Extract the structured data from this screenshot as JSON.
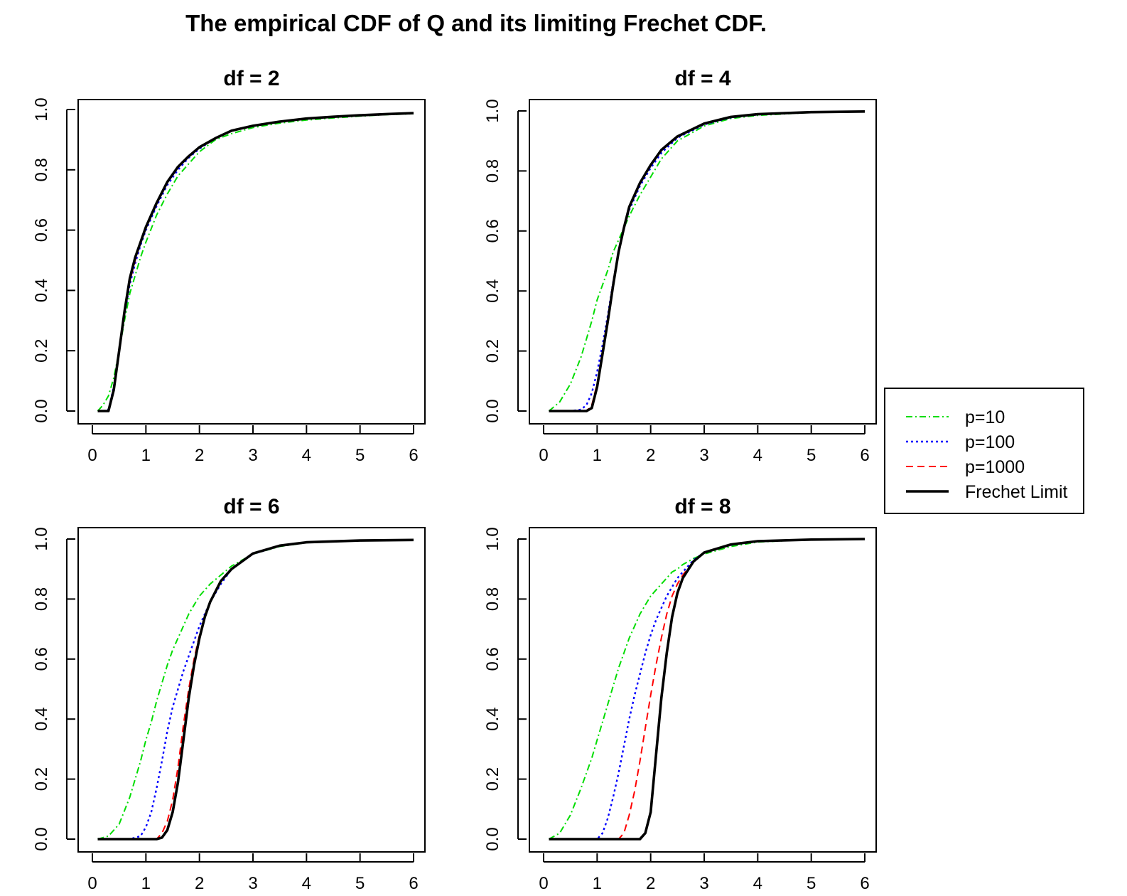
{
  "figure": {
    "title": "The empirical CDF of Q and its limiting Frechet CDF."
  },
  "legend": {
    "placement": "right, between rows",
    "entries": [
      {
        "label": "p=10",
        "color": "#00dd00",
        "dash": "dashdot"
      },
      {
        "label": "p=100",
        "color": "#0000ff",
        "dash": "dotted"
      },
      {
        "label": "p=1000",
        "color": "#ff0000",
        "dash": "dashed"
      },
      {
        "label": "Frechet Limit",
        "color": "#000000",
        "dash": "solid"
      }
    ]
  },
  "chart_data": [
    {
      "type": "line",
      "title": "df = 2",
      "xlim": [
        0,
        6
      ],
      "ylim": [
        0,
        1
      ],
      "xticks": [
        "0",
        "1",
        "2",
        "3",
        "4",
        "5",
        "6"
      ],
      "yticks": [
        "0.0",
        "0.2",
        "0.4",
        "0.6",
        "0.8",
        "1.0"
      ],
      "x": [
        0.1,
        0.2,
        0.3,
        0.4,
        0.5,
        0.6,
        0.7,
        0.8,
        0.9,
        1.0,
        1.2,
        1.4,
        1.6,
        1.8,
        2.0,
        2.3,
        2.6,
        3.0,
        3.5,
        4.0,
        4.5,
        5.0,
        5.5,
        6.0
      ],
      "series": [
        {
          "name": "p=10",
          "values": [
            0.0,
            0.02,
            0.05,
            0.11,
            0.2,
            0.3,
            0.39,
            0.45,
            0.51,
            0.56,
            0.65,
            0.72,
            0.78,
            0.82,
            0.86,
            0.9,
            0.92,
            0.94,
            0.955,
            0.965,
            0.972,
            0.978,
            0.983,
            0.986
          ]
        },
        {
          "name": "p=100",
          "values": [
            0.0,
            0.0,
            0.005,
            0.08,
            0.2,
            0.32,
            0.42,
            0.49,
            0.55,
            0.6,
            0.68,
            0.75,
            0.8,
            0.84,
            0.87,
            0.905,
            0.93,
            0.945,
            0.96,
            0.97,
            0.976,
            0.981,
            0.985,
            0.988
          ]
        },
        {
          "name": "p=1000",
          "values": [
            0.0,
            0.0,
            0.0,
            0.07,
            0.2,
            0.33,
            0.43,
            0.5,
            0.56,
            0.61,
            0.69,
            0.76,
            0.81,
            0.845,
            0.875,
            0.905,
            0.93,
            0.946,
            0.96,
            0.97,
            0.976,
            0.981,
            0.985,
            0.988
          ]
        },
        {
          "name": "Frechet Limit",
          "values": [
            0.0,
            0.0,
            0.0,
            0.07,
            0.2,
            0.33,
            0.44,
            0.51,
            0.56,
            0.61,
            0.69,
            0.76,
            0.81,
            0.845,
            0.875,
            0.905,
            0.93,
            0.946,
            0.96,
            0.97,
            0.976,
            0.981,
            0.985,
            0.988
          ]
        }
      ]
    },
    {
      "type": "line",
      "title": "df = 4",
      "xlim": [
        0,
        6
      ],
      "ylim": [
        0,
        1
      ],
      "xticks": [
        "0",
        "1",
        "2",
        "3",
        "4",
        "5",
        "6"
      ],
      "yticks": [
        "0.0",
        "0.2",
        "0.4",
        "0.6",
        "0.8",
        "1.0"
      ],
      "x": [
        0.1,
        0.3,
        0.5,
        0.7,
        0.8,
        0.9,
        1.0,
        1.1,
        1.2,
        1.3,
        1.4,
        1.5,
        1.6,
        1.8,
        2.0,
        2.2,
        2.5,
        3.0,
        3.5,
        4.0,
        5.0,
        6.0
      ],
      "series": [
        {
          "name": "p=10",
          "values": [
            0.0,
            0.03,
            0.09,
            0.18,
            0.24,
            0.3,
            0.37,
            0.42,
            0.47,
            0.53,
            0.57,
            0.61,
            0.65,
            0.72,
            0.78,
            0.84,
            0.9,
            0.95,
            0.975,
            0.985,
            0.995,
            0.998
          ]
        },
        {
          "name": "p=100",
          "values": [
            0.0,
            0.0,
            0.0,
            0.005,
            0.02,
            0.06,
            0.13,
            0.22,
            0.32,
            0.43,
            0.53,
            0.61,
            0.67,
            0.75,
            0.81,
            0.86,
            0.91,
            0.955,
            0.978,
            0.988,
            0.996,
            0.998
          ]
        },
        {
          "name": "p=1000",
          "values": [
            0.0,
            0.0,
            0.0,
            0.0,
            0.0,
            0.02,
            0.09,
            0.2,
            0.31,
            0.43,
            0.53,
            0.61,
            0.68,
            0.76,
            0.82,
            0.87,
            0.915,
            0.958,
            0.98,
            0.989,
            0.996,
            0.998
          ]
        },
        {
          "name": "Frechet Limit",
          "values": [
            0.0,
            0.0,
            0.0,
            0.0,
            0.0,
            0.01,
            0.08,
            0.19,
            0.3,
            0.42,
            0.53,
            0.61,
            0.68,
            0.76,
            0.82,
            0.87,
            0.915,
            0.958,
            0.98,
            0.989,
            0.996,
            0.998
          ]
        }
      ]
    },
    {
      "type": "line",
      "title": "df = 6",
      "xlim": [
        0,
        6
      ],
      "ylim": [
        0,
        1
      ],
      "xticks": [
        "0",
        "1",
        "2",
        "3",
        "4",
        "5",
        "6"
      ],
      "yticks": [
        "0.0",
        "0.2",
        "0.4",
        "0.6",
        "0.8",
        "1.0"
      ],
      "x": [
        0.1,
        0.3,
        0.5,
        0.7,
        0.9,
        1.0,
        1.1,
        1.2,
        1.3,
        1.4,
        1.5,
        1.6,
        1.7,
        1.8,
        1.9,
        2.0,
        2.1,
        2.2,
        2.4,
        2.6,
        3.0,
        3.5,
        4.0,
        5.0,
        6.0
      ],
      "series": [
        {
          "name": "p=10",
          "values": [
            0.0,
            0.01,
            0.05,
            0.14,
            0.26,
            0.33,
            0.39,
            0.46,
            0.52,
            0.58,
            0.63,
            0.67,
            0.71,
            0.75,
            0.78,
            0.81,
            0.83,
            0.85,
            0.88,
            0.91,
            0.95,
            0.975,
            0.988,
            0.995,
            0.997
          ]
        },
        {
          "name": "p=100",
          "values": [
            0.0,
            0.0,
            0.0,
            0.0,
            0.01,
            0.04,
            0.09,
            0.17,
            0.26,
            0.36,
            0.44,
            0.5,
            0.56,
            0.61,
            0.66,
            0.71,
            0.75,
            0.79,
            0.85,
            0.9,
            0.95,
            0.977,
            0.989,
            0.995,
            0.997
          ]
        },
        {
          "name": "p=1000",
          "values": [
            0.0,
            0.0,
            0.0,
            0.0,
            0.0,
            0.0,
            0.0,
            0.0,
            0.02,
            0.06,
            0.13,
            0.24,
            0.38,
            0.5,
            0.6,
            0.68,
            0.74,
            0.79,
            0.86,
            0.9,
            0.95,
            0.978,
            0.989,
            0.995,
            0.997
          ]
        },
        {
          "name": "Frechet Limit",
          "values": [
            0.0,
            0.0,
            0.0,
            0.0,
            0.0,
            0.0,
            0.0,
            0.0,
            0.005,
            0.03,
            0.09,
            0.19,
            0.33,
            0.47,
            0.58,
            0.67,
            0.74,
            0.79,
            0.86,
            0.9,
            0.952,
            0.978,
            0.989,
            0.995,
            0.997
          ]
        }
      ]
    },
    {
      "type": "line",
      "title": "df = 8",
      "xlim": [
        0,
        6
      ],
      "ylim": [
        0,
        1
      ],
      "xticks": [
        "0",
        "1",
        "2",
        "3",
        "4",
        "5",
        "6"
      ],
      "yticks": [
        "0.0",
        "0.2",
        "0.4",
        "0.6",
        "0.8",
        "1.0"
      ],
      "x": [
        0.1,
        0.3,
        0.5,
        0.7,
        0.9,
        1.0,
        1.1,
        1.2,
        1.3,
        1.4,
        1.5,
        1.6,
        1.7,
        1.8,
        1.9,
        2.0,
        2.1,
        2.2,
        2.3,
        2.4,
        2.5,
        2.6,
        2.8,
        3.0,
        3.5,
        4.0,
        5.0,
        6.0
      ],
      "series": [
        {
          "name": "p=10",
          "values": [
            0.0,
            0.02,
            0.08,
            0.17,
            0.27,
            0.33,
            0.39,
            0.45,
            0.51,
            0.57,
            0.62,
            0.67,
            0.71,
            0.75,
            0.78,
            0.81,
            0.83,
            0.85,
            0.87,
            0.89,
            0.9,
            0.915,
            0.935,
            0.95,
            0.975,
            0.99,
            0.998,
            1.0
          ]
        },
        {
          "name": "p=100",
          "values": [
            0.0,
            0.0,
            0.0,
            0.0,
            0.0,
            0.0,
            0.02,
            0.07,
            0.14,
            0.22,
            0.31,
            0.4,
            0.48,
            0.55,
            0.62,
            0.68,
            0.73,
            0.77,
            0.81,
            0.84,
            0.87,
            0.89,
            0.93,
            0.955,
            0.98,
            0.992,
            0.998,
            1.0
          ]
        },
        {
          "name": "p=1000",
          "values": [
            0.0,
            0.0,
            0.0,
            0.0,
            0.0,
            0.0,
            0.0,
            0.0,
            0.0,
            0.0,
            0.02,
            0.08,
            0.16,
            0.26,
            0.37,
            0.48,
            0.58,
            0.67,
            0.75,
            0.81,
            0.85,
            0.88,
            0.925,
            0.955,
            0.982,
            0.993,
            0.998,
            1.0
          ]
        },
        {
          "name": "Frechet Limit",
          "values": [
            0.0,
            0.0,
            0.0,
            0.0,
            0.0,
            0.0,
            0.0,
            0.0,
            0.0,
            0.0,
            0.0,
            0.0,
            0.0,
            0.0,
            0.02,
            0.09,
            0.28,
            0.47,
            0.62,
            0.74,
            0.82,
            0.87,
            0.925,
            0.955,
            0.982,
            0.993,
            0.998,
            1.0
          ]
        }
      ]
    }
  ]
}
